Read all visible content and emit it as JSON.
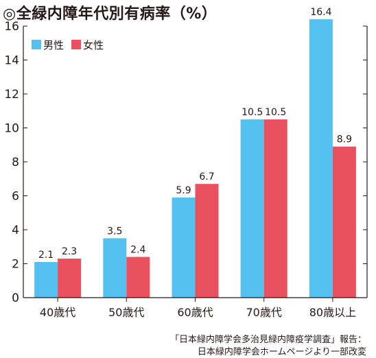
{
  "title": "◎全緑内障年代別有病率（%）",
  "chart_data": {
    "type": "bar",
    "title": "◎全緑内障年代別有病率（%）",
    "categories": [
      "40歳代",
      "50歳代",
      "60歳代",
      "70歳代",
      "80歳以上"
    ],
    "series": [
      {
        "name": "男性",
        "color": "#55c1f0",
        "values": [
          2.1,
          3.5,
          5.9,
          10.5,
          16.4
        ]
      },
      {
        "name": "女性",
        "color": "#e9515f",
        "values": [
          2.3,
          2.4,
          6.7,
          10.5,
          8.9
        ]
      }
    ],
    "ylim": [
      0,
      16
    ],
    "yticks": [
      0,
      2,
      4,
      6,
      8,
      10,
      12,
      14,
      16
    ],
    "grid": false,
    "legend": "top-left"
  },
  "source": {
    "line1": "「日本緑内障学会多治見緑内障疫学調査」報告：",
    "line2": "日本緑内障学会ホームページより一部改変"
  }
}
